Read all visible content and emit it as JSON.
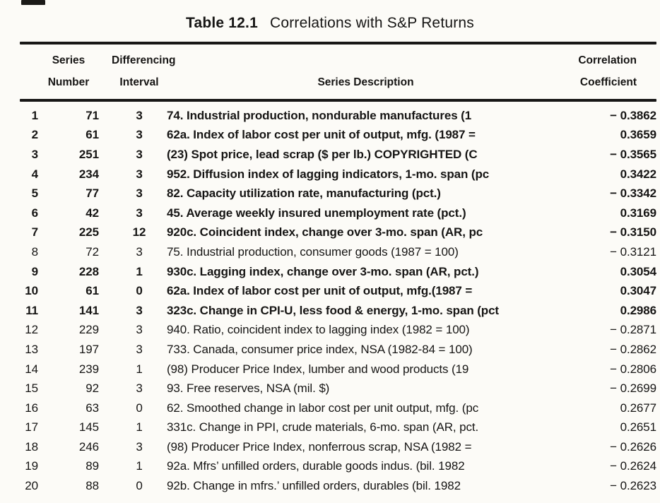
{
  "title": {
    "label": "Table 12.1",
    "text": "Correlations with S&P Returns"
  },
  "table": {
    "header": {
      "series_number": {
        "line1": "Series",
        "line2": "Number"
      },
      "differencing_interval": {
        "line1": "Differencing",
        "line2": "Interval"
      },
      "description": "Series Description",
      "correlation_coefficient": {
        "line1": "Correlation",
        "line2": "Coefficient"
      }
    },
    "rows": [
      {
        "num": "1",
        "series": "71",
        "interval": "3",
        "description": "74. Industrial production, nondurable manufactures (1",
        "correlation": "− 0.3862",
        "bold": true
      },
      {
        "num": "2",
        "series": "61",
        "interval": "3",
        "description": "62a. Index of labor cost per unit of output, mfg. (1987 =",
        "correlation": "0.3659",
        "bold": true
      },
      {
        "num": "3",
        "series": "251",
        "interval": "3",
        "description": "(23) Spot price, lead scrap ($ per lb.) COPYRIGHTED (C",
        "correlation": "− 0.3565",
        "bold": true
      },
      {
        "num": "4",
        "series": "234",
        "interval": "3",
        "description": "952. Diffusion index of lagging indicators, 1-mo. span (pc",
        "correlation": "0.3422",
        "bold": true
      },
      {
        "num": "5",
        "series": "77",
        "interval": "3",
        "description": "82. Capacity utilization rate, manufacturing (pct.)",
        "correlation": "− 0.3342",
        "bold": true
      },
      {
        "num": "6",
        "series": "42",
        "interval": "3",
        "description": "45. Average weekly insured unemployment rate (pct.)",
        "correlation": "0.3169",
        "bold": true
      },
      {
        "num": "7",
        "series": "225",
        "interval": "12",
        "description": "920c. Coincident index, change over 3-mo. span (AR, pc",
        "correlation": "− 0.3150",
        "bold": true
      },
      {
        "num": "8",
        "series": "72",
        "interval": "3",
        "description": "75. Industrial production, consumer goods (1987 = 100)",
        "correlation": "− 0.3121",
        "bold": false
      },
      {
        "num": "9",
        "series": "228",
        "interval": "1",
        "description": "930c. Lagging index, change over 3-mo. span (AR, pct.)",
        "correlation": "0.3054",
        "bold": true
      },
      {
        "num": "10",
        "series": "61",
        "interval": "0",
        "description": "62a. Index of labor cost per unit of output, mfg.(1987 =",
        "correlation": "0.3047",
        "bold": true
      },
      {
        "num": "11",
        "series": "141",
        "interval": "3",
        "description": "323c. Change in CPI-U, less food & energy, 1-mo. span (pct",
        "correlation": "0.2986",
        "bold": true
      },
      {
        "num": "12",
        "series": "229",
        "interval": "3",
        "description": "940. Ratio, coincident index to lagging index (1982 = 100)",
        "correlation": "− 0.2871",
        "bold": false
      },
      {
        "num": "13",
        "series": "197",
        "interval": "3",
        "description": "733. Canada, consumer price index, NSA (1982-84 = 100)",
        "correlation": "− 0.2862",
        "bold": false
      },
      {
        "num": "14",
        "series": "239",
        "interval": "1",
        "description": "(98) Producer Price Index, lumber and wood products (19",
        "correlation": "− 0.2806",
        "bold": false
      },
      {
        "num": "15",
        "series": "92",
        "interval": "3",
        "description": "93. Free reserves, NSA (mil. $)",
        "correlation": "− 0.2699",
        "bold": false
      },
      {
        "num": "16",
        "series": "63",
        "interval": "0",
        "description": "62. Smoothed change in labor cost per unit output, mfg. (pc",
        "correlation": "0.2677",
        "bold": false
      },
      {
        "num": "17",
        "series": "145",
        "interval": "1",
        "description": "331c. Change in PPI, crude materials, 6-mo. span (AR, pct.",
        "correlation": "0.2651",
        "bold": false
      },
      {
        "num": "18",
        "series": "246",
        "interval": "3",
        "description": "(98) Producer Price Index, nonferrous scrap, NSA (1982 =",
        "correlation": "− 0.2626",
        "bold": false
      },
      {
        "num": "19",
        "series": "89",
        "interval": "1",
        "description": "92a. Mfrs’ unfilled orders, durable goods indus. (bil. 1982",
        "correlation": "− 0.2624",
        "bold": false
      },
      {
        "num": "20",
        "series": "88",
        "interval": "0",
        "description": "92b. Change in mfrs.’ unfilled orders, durables (bil. 1982",
        "correlation": "− 0.2623",
        "bold": false
      }
    ]
  }
}
